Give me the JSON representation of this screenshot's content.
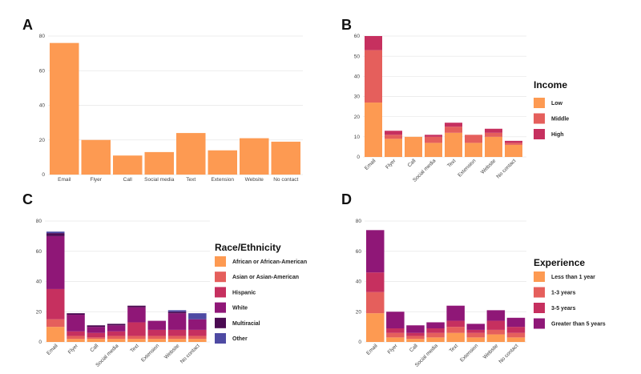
{
  "chart_data": [
    {
      "panel": "A",
      "type": "bar",
      "categories": [
        "Email",
        "Flyer",
        "Call",
        "Social media",
        "Text",
        "Extension",
        "Website",
        "No contact"
      ],
      "values": [
        76,
        20,
        11,
        13,
        24,
        14,
        21,
        19
      ],
      "ylim": [
        0,
        80
      ],
      "yticks": [
        0,
        20,
        40,
        60,
        80
      ],
      "color": "#fd9a52"
    },
    {
      "panel": "B",
      "type": "bar",
      "stacked": true,
      "categories": [
        "Email",
        "Flyer",
        "Call",
        "Social media",
        "Text",
        "Extension",
        "Website",
        "No contact"
      ],
      "ylim": [
        0,
        60
      ],
      "yticks": [
        0,
        10,
        20,
        30,
        40,
        50,
        60
      ],
      "legend_title": "Income",
      "series": [
        {
          "name": "Low",
          "color": "#fd9a52",
          "values": [
            27,
            9,
            10,
            7,
            12,
            7,
            10,
            6
          ]
        },
        {
          "name": "Middle",
          "color": "#e55f5c",
          "values": [
            26,
            2,
            0,
            3,
            3,
            4,
            2,
            1
          ]
        },
        {
          "name": "High",
          "color": "#c6305f",
          "values": [
            7,
            2,
            0,
            1,
            2,
            0,
            2,
            1
          ]
        }
      ]
    },
    {
      "panel": "C",
      "type": "bar",
      "stacked": true,
      "categories": [
        "Email",
        "Flyer",
        "Call",
        "Social media",
        "Text",
        "Extension",
        "Website",
        "No contact"
      ],
      "ylim": [
        0,
        80
      ],
      "yticks": [
        0,
        20,
        40,
        60,
        80
      ],
      "legend_title": "Race/Ethnicity",
      "series": [
        {
          "name": "African or African-American",
          "color": "#fd9a52",
          "values": [
            10,
            2,
            2,
            2,
            2,
            2,
            2,
            2
          ]
        },
        {
          "name": "Asian or Asian-American",
          "color": "#e55f5c",
          "values": [
            5,
            2,
            1,
            2,
            2,
            2,
            2,
            2
          ]
        },
        {
          "name": "Hispanic",
          "color": "#c6305f",
          "values": [
            20,
            3,
            3,
            3,
            9,
            4,
            4,
            4
          ]
        },
        {
          "name": "White",
          "color": "#8f1777",
          "values": [
            35,
            11,
            4,
            4,
            10,
            6,
            11,
            7
          ]
        },
        {
          "name": "Multiracial",
          "color": "#4b0b52",
          "values": [
            2,
            1,
            1,
            1,
            1,
            0,
            1,
            0
          ]
        },
        {
          "name": "Other",
          "color": "#4e4aa3",
          "values": [
            1,
            0,
            0,
            0,
            0,
            0,
            1,
            4
          ]
        }
      ]
    },
    {
      "panel": "D",
      "type": "bar",
      "stacked": true,
      "categories": [
        "Email",
        "Flyer",
        "Call",
        "Social media",
        "Text",
        "Extension",
        "Website",
        "No contact"
      ],
      "ylim": [
        0,
        80
      ],
      "yticks": [
        0,
        20,
        40,
        60,
        80
      ],
      "legend_title": "Experience",
      "series": [
        {
          "name": "Less than 1 year",
          "color": "#fd9a52",
          "values": [
            19,
            3,
            2,
            3,
            6,
            3,
            5,
            3
          ]
        },
        {
          "name": "1-3 years",
          "color": "#e55f5c",
          "values": [
            14,
            3,
            2,
            3,
            4,
            3,
            3,
            3
          ]
        },
        {
          "name": "3-5 years",
          "color": "#c6305f",
          "values": [
            13,
            3,
            2,
            3,
            4,
            2,
            6,
            4
          ]
        },
        {
          "name": "Greater than 5 years",
          "color": "#8f1777",
          "values": [
            28,
            11,
            5,
            4,
            10,
            4,
            7,
            6
          ]
        }
      ]
    }
  ]
}
